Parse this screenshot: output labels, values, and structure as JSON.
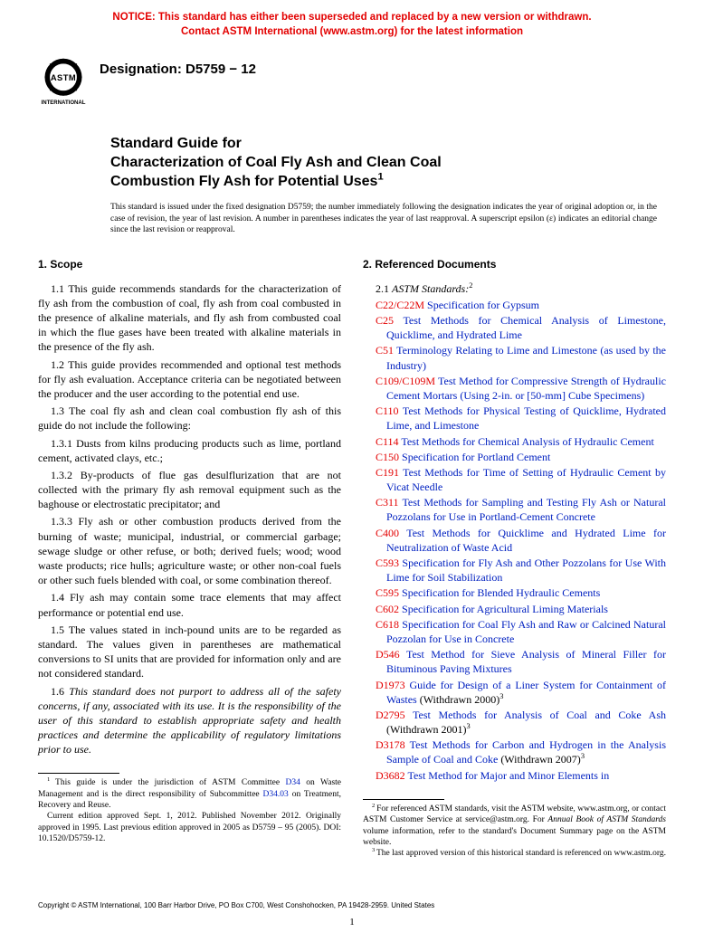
{
  "notice": {
    "line1": "NOTICE: This standard has either been superseded and replaced by a new version or withdrawn.",
    "line2": "Contact ASTM International (www.astm.org) for the latest information"
  },
  "designation": "Designation: D5759 − 12",
  "title": {
    "line1": "Standard Guide for",
    "line2_a": "Characterization of Coal Fly Ash and Clean Coal",
    "line2_b": "Combustion Fly Ash for Potential Uses",
    "super": "1"
  },
  "issuance": "This standard is issued under the fixed designation D5759; the number immediately following the designation indicates the year of original adoption or, in the case of revision, the year of last revision. A number in parentheses indicates the year of last reapproval. A superscript epsilon (ε) indicates an editorial change since the last revision or reapproval.",
  "scope": {
    "heading": "1. Scope",
    "p1": "1.1 This guide recommends standards for the characterization of fly ash from the combustion of coal, fly ash from coal combusted in the presence of alkaline materials, and fly ash from combusted coal in which the flue gases have been treated with alkaline materials in the presence of the fly ash.",
    "p2": "1.2 This guide provides recommended and optional test methods for fly ash evaluation. Acceptance criteria can be negotiated between the producer and the user according to the potential end use.",
    "p3": "1.3 The coal fly ash and clean coal combustion fly ash of this guide do not include the following:",
    "p3_1": "1.3.1 Dusts from kilns producing products such as lime, portland cement, activated clays, etc.;",
    "p3_2": "1.3.2 By-products of flue gas desulflurization that are not collected with the primary fly ash removal equipment such as the baghouse or electrostatic precipitator; and",
    "p3_3": "1.3.3 Fly ash or other combustion products derived from the burning of waste; municipal, industrial, or commercial garbage; sewage sludge or other refuse, or both; derived fuels; wood; wood waste products; rice hulls; agriculture waste; or other non-coal fuels or other such fuels blended with coal, or some combination thereof.",
    "p4": "1.4 Fly ash may contain some trace elements that may affect performance or potential end use.",
    "p5": "1.5 The values stated in inch-pound units are to be regarded as standard. The values given in parentheses are mathematical conversions to SI units that are provided for information only and are not considered standard.",
    "p6": "1.6 This standard does not purport to address all of the safety concerns, if any, associated with its use. It is the responsibility of the user of this standard to establish appropriate safety and health practices and determine the applicability of regulatory limitations prior to use."
  },
  "refs": {
    "heading": "2. Referenced Documents",
    "subhead_num": "2.1",
    "subhead_text": "ASTM Standards:",
    "subhead_sup": "2",
    "items": [
      {
        "code": "C22/C22M",
        "title": "Specification for Gypsum"
      },
      {
        "code": "C25",
        "title": "Test Methods for Chemical Analysis of Limestone, Quicklime, and Hydrated Lime"
      },
      {
        "code": "C51",
        "title": "Terminology Relating to Lime and Limestone (as used by the Industry)"
      },
      {
        "code": "C109/C109M",
        "title": "Test Method for Compressive Strength of Hydraulic Cement Mortars (Using 2-in. or [50-mm] Cube Specimens)"
      },
      {
        "code": "C110",
        "title": "Test Methods for Physical Testing of Quicklime, Hydrated Lime, and Limestone"
      },
      {
        "code": "C114",
        "title": "Test Methods for Chemical Analysis of Hydraulic Cement"
      },
      {
        "code": "C150",
        "title": "Specification for Portland Cement"
      },
      {
        "code": "C191",
        "title": "Test Methods for Time of Setting of Hydraulic Cement by Vicat Needle"
      },
      {
        "code": "C311",
        "title": "Test Methods for Sampling and Testing Fly Ash or Natural Pozzolans for Use in Portland-Cement Concrete"
      },
      {
        "code": "C400",
        "title": "Test Methods for Quicklime and Hydrated Lime for Neutralization of Waste Acid"
      },
      {
        "code": "C593",
        "title": "Specification for Fly Ash and Other Pozzolans for Use With Lime for Soil Stabilization"
      },
      {
        "code": "C595",
        "title": "Specification for Blended Hydraulic Cements"
      },
      {
        "code": "C602",
        "title": "Specification for Agricultural Liming Materials"
      },
      {
        "code": "C618",
        "title": "Specification for Coal Fly Ash and Raw or Calcined Natural Pozzolan for Use in Concrete"
      },
      {
        "code": "D546",
        "title": "Test Method for Sieve Analysis of Mineral Filler for Bituminous Paving Mixtures"
      },
      {
        "code": "D1973",
        "title": "Guide for Design of a Liner System for Containment of Wastes",
        "withdrawn": "(Withdrawn 2000)",
        "sup": "3"
      },
      {
        "code": "D2795",
        "title": "Test Methods for Analysis of Coal and Coke Ash",
        "withdrawn": "(Withdrawn 2001)",
        "sup": "3"
      },
      {
        "code": "D3178",
        "title": "Test Methods for Carbon and Hydrogen in the Analysis Sample of Coal and Coke",
        "withdrawn": "(Withdrawn 2007)",
        "sup": "3"
      },
      {
        "code": "D3682",
        "title": "Test Method for Major and Minor Elements in"
      }
    ]
  },
  "footnotes_left": {
    "f1_a": "This guide is under the jurisdiction of ASTM Committee ",
    "f1_link1": "D34",
    "f1_b": " on Waste Management and is the direct responsibility of Subcommittee ",
    "f1_link2": "D34.03",
    "f1_c": " on Treatment, Recovery and Reuse.",
    "f1_d": "Current edition approved Sept. 1, 2012. Published November 2012. Originally approved in 1995. Last previous edition approved in 2005 as D5759 – 95 (2005). DOI: 10.1520/D5759-12."
  },
  "footnotes_right": {
    "f2": "For referenced ASTM standards, visit the ASTM website, www.astm.org, or contact ASTM Customer Service at service@astm.org. For Annual Book of ASTM Standards volume information, refer to the standard's Document Summary page on the ASTM website.",
    "f3": "The last approved version of this historical standard is referenced on www.astm.org."
  },
  "copyright": "Copyright © ASTM International, 100 Barr Harbor Drive, PO Box C700, West Conshohocken, PA 19428-2959. United States",
  "page_number": "1",
  "colors": {
    "notice_red": "#e30000",
    "link_blue": "#0020c0",
    "text_black": "#000000"
  }
}
